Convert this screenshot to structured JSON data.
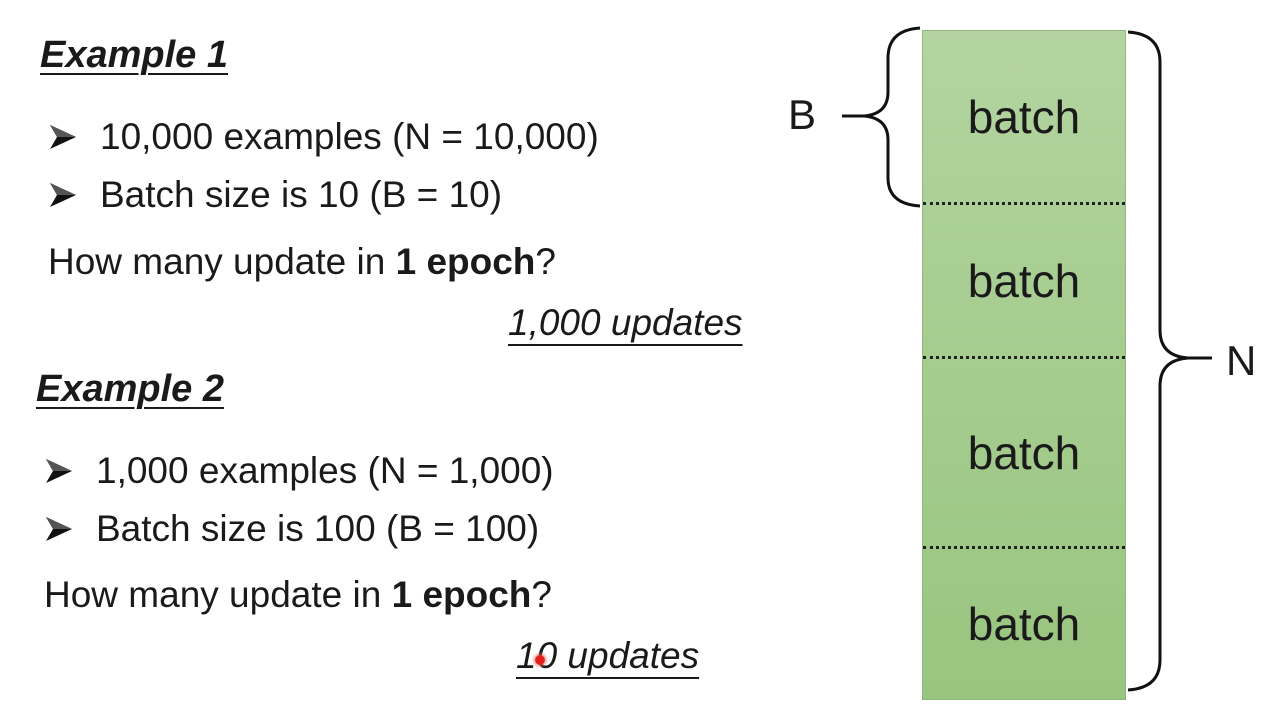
{
  "example1": {
    "title": "Example 1",
    "bullets": [
      "10,000 examples (N = 10,000)",
      "Batch size is 10 (B = 10)"
    ],
    "question_prefix": "How many update in ",
    "question_bold": "1 epoch",
    "question_suffix": "?",
    "answer": "1,000 updates"
  },
  "example2": {
    "title": "Example 2",
    "bullets": [
      "1,000 examples (N = 1,000)",
      "Batch size is 100 (B = 100)"
    ],
    "question_prefix": "How many update in ",
    "question_bold": "1 epoch",
    "question_suffix": "?",
    "answer": "10 updates"
  },
  "diagram": {
    "batches": [
      "batch",
      "batch",
      "batch",
      "batch"
    ],
    "b_label": "B",
    "n_label": "N",
    "fill_color": "#a6cc8f"
  }
}
